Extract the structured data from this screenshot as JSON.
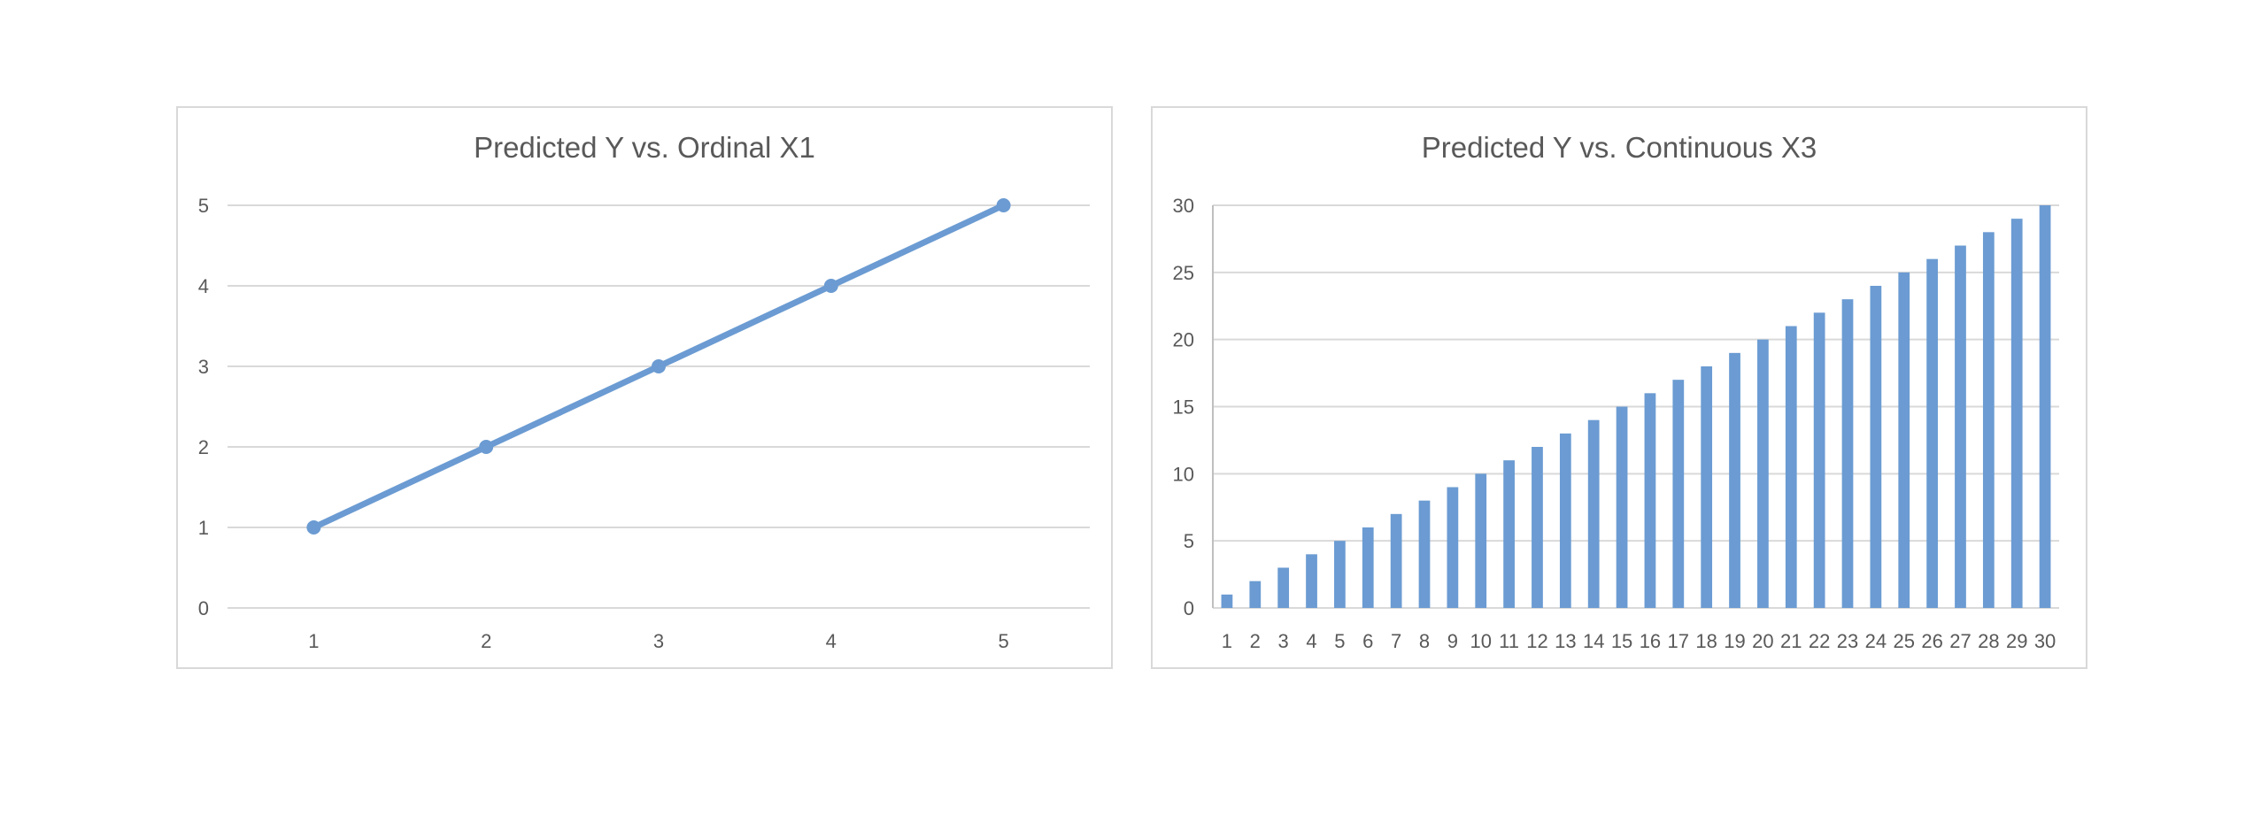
{
  "chart_data": [
    {
      "type": "line",
      "title": "Predicted Y vs. Ordinal X1",
      "categories": [
        "1",
        "2",
        "3",
        "4",
        "5"
      ],
      "series": [
        {
          "values": [
            1,
            2,
            3,
            4,
            5
          ],
          "color": "#6b9bd2",
          "markers": true
        }
      ],
      "ylim": [
        0,
        5
      ],
      "yticks": [
        "0",
        "1",
        "2",
        "3",
        "4",
        "5"
      ],
      "grid": true,
      "legend": "none"
    },
    {
      "type": "bar",
      "title": "Predicted Y vs. Continuous X3",
      "categories": [
        "1",
        "2",
        "3",
        "4",
        "5",
        "6",
        "7",
        "8",
        "9",
        "10",
        "11",
        "12",
        "13",
        "14",
        "15",
        "16",
        "17",
        "18",
        "19",
        "20",
        "21",
        "22",
        "23",
        "24",
        "25",
        "26",
        "27",
        "28",
        "29",
        "30"
      ],
      "series": [
        {
          "values": [
            1,
            2,
            3,
            4,
            5,
            6,
            7,
            8,
            9,
            10,
            11,
            12,
            13,
            14,
            15,
            16,
            17,
            18,
            19,
            20,
            21,
            22,
            23,
            24,
            25,
            26,
            27,
            28,
            29,
            30
          ],
          "color": "#6b9bd2"
        }
      ],
      "ylim": [
        0,
        30
      ],
      "yticks": [
        "0",
        "5",
        "10",
        "15",
        "20",
        "25",
        "30"
      ],
      "grid": true,
      "legend": "none"
    }
  ]
}
